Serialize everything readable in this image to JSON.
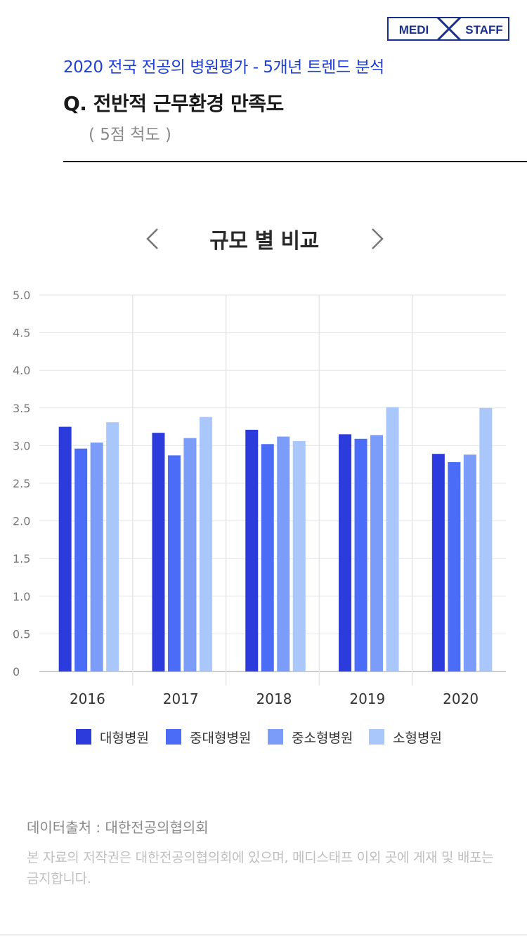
{
  "header": {
    "logo_left": "MEDI",
    "logo_right": "STAFF",
    "subtitle": "2020 전국 전공의 병원평가 - 5개년 트렌드 분석",
    "question": "Q. 전반적 근무환경 만족도",
    "scale": "( 5점 척도 )"
  },
  "nav": {
    "title": "규모 별 비교",
    "prev_icon": "chevron-left-icon",
    "next_icon": "chevron-right-icon"
  },
  "chart_data": {
    "type": "bar",
    "categories": [
      "2016",
      "2017",
      "2018",
      "2019",
      "2020"
    ],
    "series": [
      {
        "name": "대형병원",
        "color": "#2b3bdc",
        "values": [
          3.25,
          3.17,
          3.21,
          3.15,
          2.89
        ]
      },
      {
        "name": "중대형병원",
        "color": "#4a6cf7",
        "values": [
          2.96,
          2.87,
          3.02,
          3.09,
          2.78
        ]
      },
      {
        "name": "중소형병원",
        "color": "#7b9cf9",
        "values": [
          3.04,
          3.1,
          3.12,
          3.14,
          2.88
        ]
      },
      {
        "name": "소형병원",
        "color": "#a9c7fb",
        "values": [
          3.31,
          3.38,
          3.06,
          3.51,
          3.5
        ]
      }
    ],
    "yticks": [
      "0",
      "0.5",
      "1.0",
      "1.5",
      "2.0",
      "2.5",
      "3.0",
      "3.5",
      "4.0",
      "4.5",
      "5.0"
    ],
    "ylim": [
      0,
      5
    ],
    "grid": true,
    "legend_position": "bottom"
  },
  "footer": {
    "source": "데이터출처 : 대한전공의협의회",
    "notice": "본 자료의 저작권은 대한전공의협의회에 있으며, 메디스태프 이외 곳에 게재 및 배포는 금지합니다."
  }
}
